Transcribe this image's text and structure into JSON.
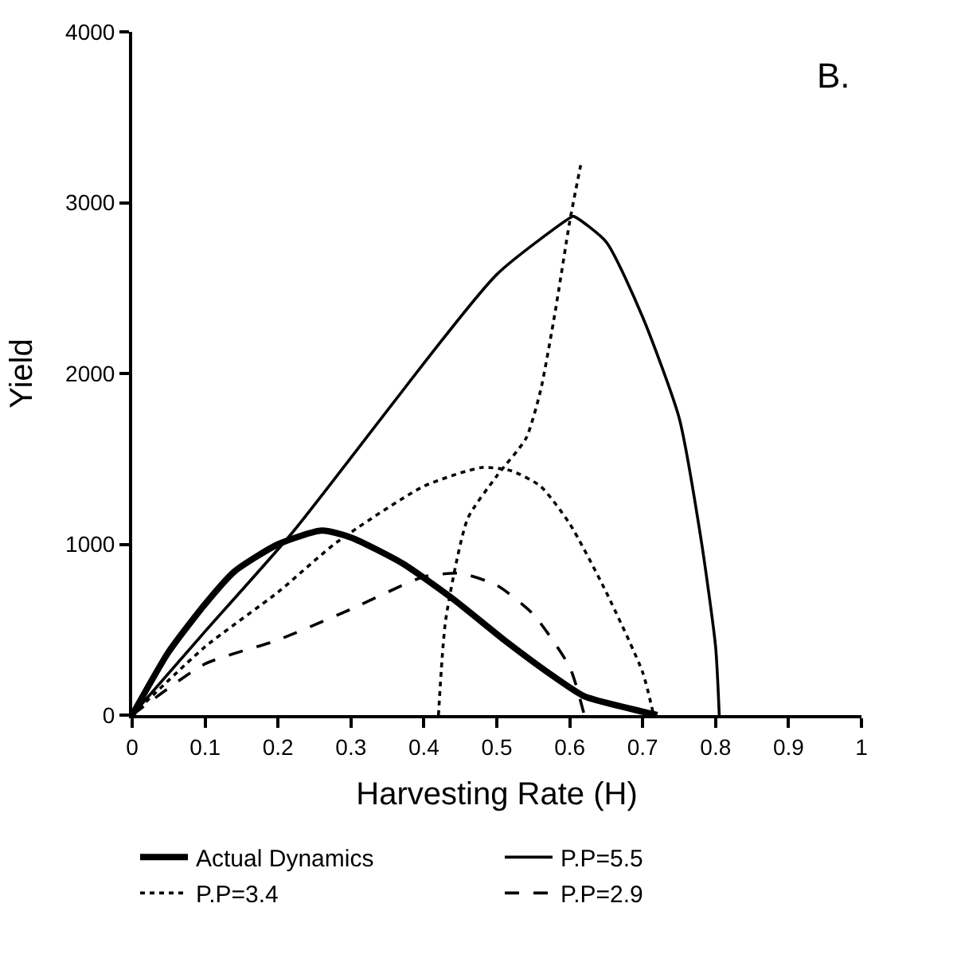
{
  "chart_data": {
    "type": "line",
    "xlabel": "Harvesting Rate (H)",
    "ylabel": "Yield",
    "annotations": [
      "B."
    ],
    "xlim": [
      0,
      1
    ],
    "xticks": [
      0,
      0.1,
      0.2,
      0.3,
      0.4,
      0.5,
      0.6,
      0.7,
      0.8,
      0.9,
      1
    ],
    "ylim": [
      0,
      4000
    ],
    "yticks": [
      0,
      1000,
      2000,
      3000,
      4000
    ],
    "legend": "bottom",
    "marker": "none",
    "series": [
      {
        "name": "Actual Dynamics",
        "color": "#000000",
        "line_style": "solid",
        "x": [
          0,
          0.05,
          0.1,
          0.14,
          0.2,
          0.26,
          0.3,
          0.37,
          0.44,
          0.51,
          0.58,
          0.62,
          0.7,
          0.72
        ],
        "values": [
          0,
          370,
          650,
          840,
          1000,
          1080,
          1040,
          890,
          680,
          440,
          220,
          110,
          20,
          0
        ]
      },
      {
        "name": "P.P=5.5",
        "color": "#000000",
        "line_style": "solid",
        "x": [
          0,
          0.1,
          0.22,
          0.5,
          0.6,
          0.605,
          0.65,
          0.7,
          0.75,
          0.78,
          0.8,
          0.805
        ],
        "values": [
          0,
          490,
          1070,
          2580,
          2910,
          2920,
          2770,
          2330,
          1740,
          1030,
          400,
          0
        ]
      },
      {
        "name": "P.P=3.4",
        "color": "#000000",
        "line_style": "dotted",
        "x": [
          0,
          0.1,
          0.2,
          0.28,
          0.4,
          0.48,
          0.52,
          0.56,
          0.6,
          0.65,
          0.7,
          0.715
        ],
        "values": [
          0,
          400,
          720,
          1010,
          1340,
          1450,
          1430,
          1340,
          1120,
          720,
          250,
          0
        ]
      },
      {
        "color": "#000000",
        "line_style": "dotted",
        "x": [
          0.42,
          0.43,
          0.46,
          0.5,
          0.54,
          0.56,
          0.58,
          0.6,
          0.615
        ],
        "values": [
          0,
          560,
          1150,
          1400,
          1620,
          1900,
          2360,
          2890,
          3220
        ]
      },
      {
        "name": "P.P=2.9",
        "color": "#000000",
        "line_style": "dashed",
        "x": [
          0,
          0.1,
          0.2,
          0.3,
          0.4,
          0.45,
          0.5,
          0.55,
          0.6,
          0.62
        ],
        "values": [
          0,
          300,
          440,
          620,
          810,
          830,
          760,
          590,
          280,
          0
        ]
      }
    ]
  }
}
